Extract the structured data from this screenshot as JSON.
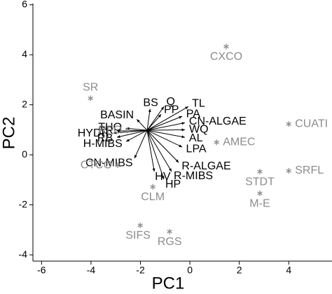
{
  "chart_data": {
    "type": "biplot",
    "x_label": "PC1",
    "y_label": "PC2",
    "xlim": [
      -6.35,
      5.75
    ],
    "ylim": [
      -4.25,
      6.05
    ],
    "xticks": [
      -6,
      -4,
      -2,
      0,
      2,
      4
    ],
    "yticks": [
      -4,
      -2,
      0,
      2,
      4,
      6
    ],
    "vector_color": "#000000",
    "point_color": "#8c8c8c",
    "vector_origin": {
      "x": -1.73,
      "y": 0.98
    },
    "vectors": [
      {
        "label": "TL",
        "x": -0.06,
        "y": 1.93
      },
      {
        "label": "Q",
        "x": -1.05,
        "y": 1.93
      },
      {
        "label": "BS",
        "x": -1.61,
        "y": 1.84
      },
      {
        "label": "PP",
        "x": -1.16,
        "y": 1.62
      },
      {
        "label": "BASIN",
        "x": -2.15,
        "y": 1.42
      },
      {
        "label": "THQ",
        "x": -2.58,
        "y": 1.06
      },
      {
        "label": "SR",
        "x": -2.92,
        "y": 0.95
      },
      {
        "label": "HYDR",
        "x": -3.09,
        "y": 0.87
      },
      {
        "label": "RB",
        "x": -2.95,
        "y": 0.7
      },
      {
        "label": "H-MIBS",
        "x": -2.58,
        "y": 0.53
      },
      {
        "label": "CN-MIBS",
        "x": -2.24,
        "y": -0.14
      },
      {
        "label": "HV",
        "x": -1.44,
        "y": -0.67
      },
      {
        "label": "HP",
        "x": -1.05,
        "y": -0.98
      },
      {
        "label": "R-MIBS",
        "x": -0.74,
        "y": -0.67
      },
      {
        "label": "R-ALGAE",
        "x": -0.45,
        "y": -0.31
      },
      {
        "label": "LPA",
        "x": -0.31,
        "y": 0.31
      },
      {
        "label": "AL",
        "x": -0.2,
        "y": 0.7
      },
      {
        "label": "WQ",
        "x": -0.2,
        "y": 1.0
      },
      {
        "label": "CN-ALGAE",
        "x": -0.2,
        "y": 1.28
      },
      {
        "label": "PA",
        "x": -0.31,
        "y": 1.54
      }
    ],
    "points": [
      {
        "label": "CXCO",
        "x": 1.47,
        "y": 4.33
      },
      {
        "label": "SR",
        "x": -4.02,
        "y": 2.26
      },
      {
        "label": "CUATI",
        "x": 4.0,
        "y": 1.23
      },
      {
        "label": "AMEC",
        "x": 1.08,
        "y": 0.5
      },
      {
        "label": "RFO",
        "x": -2.52,
        "y": 0.98
      },
      {
        "label": "CTCO",
        "x": -2.92,
        "y": -0.42
      },
      {
        "label": "STDT",
        "x": 2.83,
        "y": -0.67
      },
      {
        "label": "SRFL",
        "x": 4.0,
        "y": -0.64
      },
      {
        "label": "M-E",
        "x": 2.83,
        "y": -1.54
      },
      {
        "label": "CLM",
        "x": -1.5,
        "y": -1.28
      },
      {
        "label": "SIFS",
        "x": -2.01,
        "y": -2.82
      },
      {
        "label": "RGS",
        "x": -0.82,
        "y": -3.07
      }
    ]
  }
}
